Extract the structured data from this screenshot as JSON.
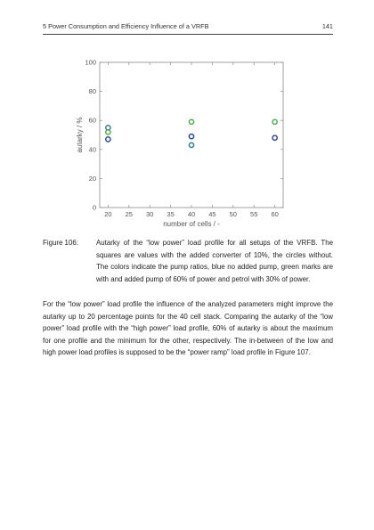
{
  "header": {
    "title": "5 Power Consumption and Efficiency Influence of a VRFB",
    "page_number": "141"
  },
  "figure": {
    "label": "Figure 106:",
    "caption": "Autarky of the “low power” load profile for all setups of the VRFB. The squares are values with the added converter of 10%, the circles without. The colors indicate the pump ratios, blue no added pump, green marks are with and added pump of 60% of power and petrol with 30% of power."
  },
  "paragraph": "For the “low power” load profile the influence of the analyzed parameters might improve the autarky up to 20 percentage points for the 40 cell stack. Comparing the autarky of the “low power” load profile with the “high power” load profile, 60% of autarky is about the maximum for one profile and the minimum for the other, respectively. The in-between of the low and high power load profiles is supposed to be the “power ramp” load profile in Figure 107.",
  "chart_data": {
    "type": "scatter",
    "xlabel": "number of cells / -",
    "ylabel": "autarky / %",
    "xlim": [
      18,
      62
    ],
    "ylim": [
      0,
      100
    ],
    "xticks": [
      20,
      25,
      30,
      35,
      40,
      45,
      50,
      55,
      60
    ],
    "yticks": [
      0,
      20,
      40,
      60,
      80,
      100
    ],
    "grid": false,
    "series": [
      {
        "color": "#2a4aa0",
        "points": [
          [
            20,
            47
          ],
          [
            40,
            49
          ],
          [
            60,
            48
          ]
        ]
      },
      {
        "color": "#2e7f9e",
        "points": [
          [
            20,
            55
          ],
          [
            40,
            43
          ]
        ]
      },
      {
        "color": "#4caf50",
        "points": [
          [
            20,
            52
          ],
          [
            40,
            59
          ],
          [
            60,
            59
          ]
        ]
      }
    ]
  }
}
